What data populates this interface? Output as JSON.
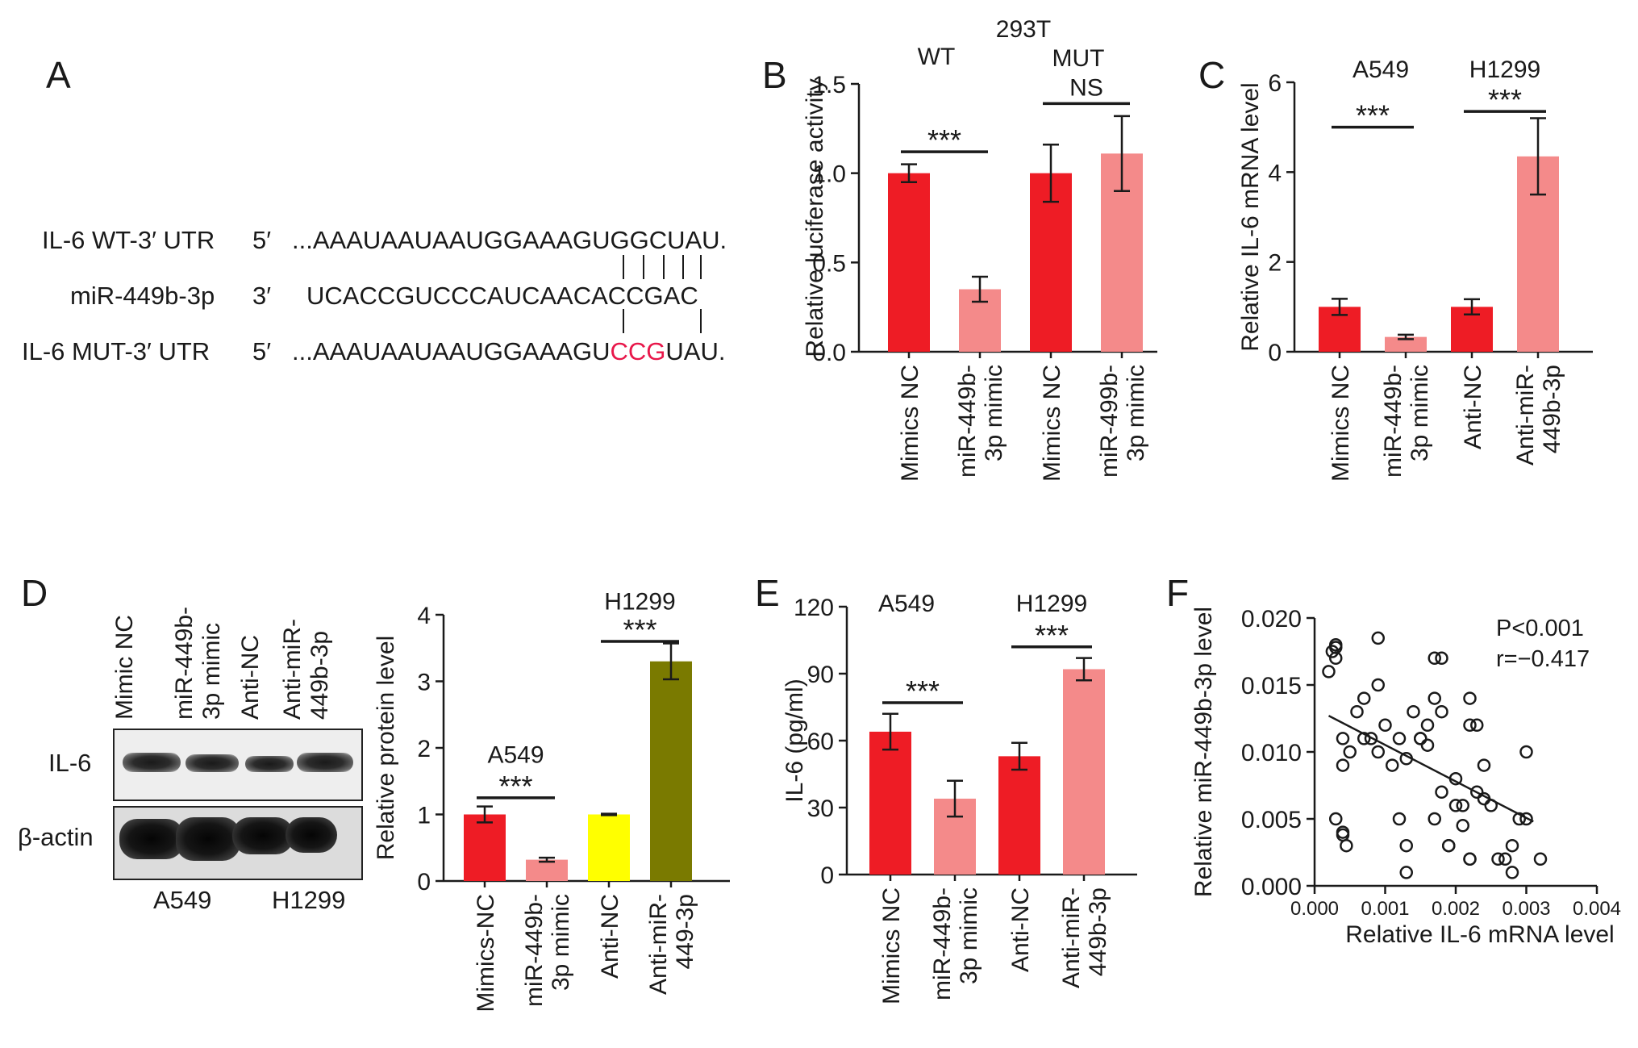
{
  "panels": {
    "A": {
      "letter": "A",
      "rows": [
        {
          "label": "IL-6 WT-3′ UTR",
          "end": "5′",
          "seq": "...AAAUAAUAAUGGAAAGUGGCUAU.",
          "highlight": null
        },
        {
          "label": "miR-449b-3p",
          "end": "3′",
          "seq": "UCACCGUCCCAUCAACACCGAC",
          "highlight": null
        },
        {
          "label": "IL-6 MUT-3′ UTR",
          "end": "5′",
          "seq_pre": "...AAAUAAUAAUGGAAAGU",
          "seq_mut": "CCG",
          "seq_post": "UAU."
        }
      ],
      "mut_color": "#e8174a"
    },
    "B": {
      "letter": "B"
    },
    "C": {
      "letter": "C"
    },
    "D": {
      "letter": "D",
      "blot_lanes": [
        "Mimic NC",
        "miR-449b-\n3p mimic",
        "Anti-NC",
        "Anti-miR-\n449b-3p"
      ],
      "blot_rows": [
        "IL-6",
        "β-actin"
      ],
      "blot_cells": [
        "A549",
        "H1299"
      ]
    },
    "E": {
      "letter": "E"
    },
    "F": {
      "letter": "F",
      "stat_p": "P<0.001",
      "stat_r": "r=−0.417"
    }
  },
  "colors": {
    "red": "#ee1c25",
    "pink": "#f48a8a",
    "yellow": "#ffff00",
    "olive": "#7a7a00"
  },
  "chart_data": [
    {
      "panel": "B",
      "type": "bar",
      "title": "293T",
      "ylabel": "Relative luciferase activity",
      "ylim": [
        0,
        1.5
      ],
      "yticks": [
        "0.0",
        "0.5",
        "1.0",
        "1.5"
      ],
      "categories": [
        "Mimics NC",
        "miR-449b-\n3p mimic",
        "Mimics NC",
        "miR-499b-\n3p mimic"
      ],
      "values": [
        1.0,
        0.35,
        1.0,
        1.11
      ],
      "errors": [
        0.05,
        0.07,
        0.16,
        0.21
      ],
      "bar_colors": [
        "red",
        "pink",
        "red",
        "pink"
      ],
      "group_labels": [
        {
          "text": "WT",
          "bars": [
            0,
            1
          ]
        },
        {
          "text": "MUT",
          "bars": [
            2,
            3
          ]
        }
      ],
      "significance": [
        {
          "text": "***",
          "bars": [
            0,
            1
          ],
          "y": 1.12
        },
        {
          "text": "NS",
          "bars": [
            2,
            3
          ],
          "y": 1.39
        }
      ]
    },
    {
      "panel": "C",
      "type": "bar",
      "ylabel": "Relative IL-6 mRNA level",
      "ylim": [
        0,
        6
      ],
      "yticks": [
        "0",
        "2",
        "4",
        "6"
      ],
      "categories": [
        "Mimics NC",
        "miR-449b-\n3p mimic",
        "Anti-NC",
        "Anti-miR-\n449b-3p"
      ],
      "values": [
        1.0,
        0.33,
        1.0,
        4.35
      ],
      "errors": [
        0.18,
        0.05,
        0.17,
        0.85
      ],
      "bar_colors": [
        "red",
        "pink",
        "red",
        "pink"
      ],
      "group_labels": [
        {
          "text": "A549",
          "bars": [
            0,
            1
          ]
        },
        {
          "text": "H1299",
          "bars": [
            2,
            3
          ]
        }
      ],
      "significance": [
        {
          "text": "***",
          "bars": [
            0,
            1
          ],
          "y": 5.0
        },
        {
          "text": "***",
          "bars": [
            2,
            3
          ],
          "y": 5.35
        }
      ]
    },
    {
      "panel": "D",
      "type": "bar",
      "ylabel": "Relative protein level",
      "ylim": [
        0,
        4
      ],
      "yticks": [
        "0",
        "1",
        "2",
        "3",
        "4"
      ],
      "categories": [
        "Mimics-NC",
        "miR-449b-\n3p mimic",
        "Anti-NC",
        "Anti-miR-\n449-3p"
      ],
      "values": [
        1.0,
        0.32,
        1.0,
        3.3
      ],
      "errors": [
        0.12,
        0.03,
        0.01,
        0.27
      ],
      "bar_colors": [
        "red",
        "pink",
        "yellow",
        "olive"
      ],
      "group_labels": [
        {
          "text": "A549",
          "y": 1.9,
          "bars": [
            0,
            1
          ]
        },
        {
          "text": "H1299",
          "y": 4.2,
          "bars": [
            2,
            3
          ]
        }
      ],
      "significance": [
        {
          "text": "***",
          "bars": [
            0,
            1
          ],
          "y": 1.25
        },
        {
          "text": "***",
          "bars": [
            2,
            3
          ],
          "y": 3.6
        }
      ]
    },
    {
      "panel": "E",
      "type": "bar",
      "ylabel": "IL-6 (pg/ml)",
      "ylim": [
        0,
        120
      ],
      "yticks": [
        "0",
        "30",
        "60",
        "90",
        "120"
      ],
      "categories": [
        "Mimics NC",
        "miR-449b-\n3p mimic",
        "Anti-NC",
        "Anti-miR-\n449b-3p"
      ],
      "values": [
        64,
        34,
        53,
        92
      ],
      "errors": [
        8,
        8,
        6,
        5
      ],
      "bar_colors": [
        "red",
        "pink",
        "red",
        "pink"
      ],
      "group_labels": [
        {
          "text": "A549",
          "bars": [
            0,
            1
          ]
        },
        {
          "text": "H1299",
          "bars": [
            2,
            3
          ]
        }
      ],
      "significance": [
        {
          "text": "***",
          "bars": [
            0,
            1
          ],
          "y": 77
        },
        {
          "text": "***",
          "bars": [
            2,
            3
          ],
          "y": 102
        }
      ]
    },
    {
      "panel": "F",
      "type": "scatter",
      "xlabel": "Relative IL-6 mRNA level",
      "ylabel": "Relative miR-449b-3p level",
      "xlim": [
        0,
        0.004
      ],
      "ylim": [
        0,
        0.02
      ],
      "xticks": [
        "0.000",
        "0.001",
        "0.002",
        "0.003",
        "0.004"
      ],
      "yticks": [
        "0.000",
        "0.005",
        "0.010",
        "0.015",
        "0.020"
      ],
      "trendline": [
        [
          0.0002,
          0.0127
        ],
        [
          0.0031,
          0.0048
        ]
      ],
      "points": [
        [
          0.0002,
          0.016
        ],
        [
          0.0003,
          0.018
        ],
        [
          0.0003,
          0.0178
        ],
        [
          0.0003,
          0.017
        ],
        [
          0.00025,
          0.0175
        ],
        [
          0.0004,
          0.011
        ],
        [
          0.0004,
          0.009
        ],
        [
          0.0003,
          0.005
        ],
        [
          0.0004,
          0.004
        ],
        [
          0.00045,
          0.003
        ],
        [
          0.0004,
          0.0038
        ],
        [
          0.0005,
          0.01
        ],
        [
          0.0006,
          0.013
        ],
        [
          0.0007,
          0.014
        ],
        [
          0.0007,
          0.011
        ],
        [
          0.0008,
          0.011
        ],
        [
          0.0009,
          0.015
        ],
        [
          0.0009,
          0.0185
        ],
        [
          0.0009,
          0.01
        ],
        [
          0.001,
          0.012
        ],
        [
          0.0011,
          0.009
        ],
        [
          0.0012,
          0.005
        ],
        [
          0.0012,
          0.011
        ],
        [
          0.0013,
          0.001
        ],
        [
          0.0013,
          0.003
        ],
        [
          0.0013,
          0.0095
        ],
        [
          0.0014,
          0.013
        ],
        [
          0.0015,
          0.011
        ],
        [
          0.0015,
          0.011
        ],
        [
          0.0016,
          0.0105
        ],
        [
          0.0016,
          0.012
        ],
        [
          0.0017,
          0.017
        ],
        [
          0.0017,
          0.014
        ],
        [
          0.0017,
          0.005
        ],
        [
          0.0018,
          0.017
        ],
        [
          0.0018,
          0.013
        ],
        [
          0.0018,
          0.007
        ],
        [
          0.0019,
          0.003
        ],
        [
          0.0019,
          0.003
        ],
        [
          0.002,
          0.006
        ],
        [
          0.002,
          0.008
        ],
        [
          0.0021,
          0.006
        ],
        [
          0.0021,
          0.0045
        ],
        [
          0.0022,
          0.012
        ],
        [
          0.0022,
          0.014
        ],
        [
          0.0022,
          0.002
        ],
        [
          0.0022,
          0.002
        ],
        [
          0.0023,
          0.007
        ],
        [
          0.0023,
          0.012
        ],
        [
          0.0024,
          0.0065
        ],
        [
          0.0024,
          0.009
        ],
        [
          0.0025,
          0.006
        ],
        [
          0.0026,
          0.002
        ],
        [
          0.0027,
          0.002
        ],
        [
          0.0028,
          0.003
        ],
        [
          0.0028,
          0.001
        ],
        [
          0.0029,
          0.005
        ],
        [
          0.003,
          0.01
        ],
        [
          0.003,
          0.005
        ],
        [
          0.0032,
          0.002
        ]
      ]
    }
  ]
}
